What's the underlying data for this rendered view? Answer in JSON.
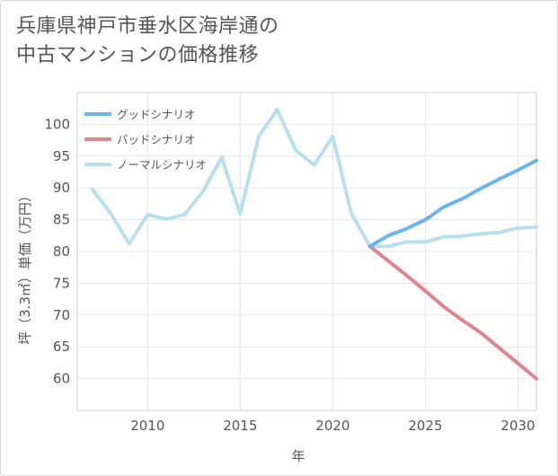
{
  "title_line1": "兵庫県神戸市垂水区海岸通の",
  "title_line2": "中古マンションの価格推移",
  "chart_data": {
    "type": "line",
    "xlabel": "年",
    "ylabel": "坪（3.3㎡）単価（万円）",
    "xlim": [
      2006.2,
      2031
    ],
    "ylim": [
      55,
      105
    ],
    "x_ticks": [
      2010,
      2015,
      2020,
      2025,
      2030
    ],
    "y_ticks": [
      60,
      65,
      70,
      75,
      80,
      85,
      90,
      95,
      100
    ],
    "grid": "both",
    "legend_position": "top-left",
    "series": [
      {
        "name": "グッドシナリオ",
        "color": "#6cb4ea",
        "x": [
          2022,
          2023,
          2024,
          2025,
          2026,
          2027,
          2028,
          2029,
          2030,
          2031
        ],
        "y": [
          80.8,
          82.5,
          83.6,
          85.0,
          87.0,
          88.3,
          89.9,
          91.4,
          92.8,
          94.3
        ]
      },
      {
        "name": "バッドシナリオ",
        "color": "#e0848e",
        "x": [
          2022,
          2023,
          2024,
          2025,
          2026,
          2027,
          2028,
          2029,
          2030,
          2031
        ],
        "y": [
          80.8,
          78.5,
          76.2,
          73.8,
          71.3,
          69.2,
          67.2,
          64.8,
          62.4,
          60.0
        ]
      },
      {
        "name": "ノーマルシナリオ",
        "color": "#b8dff0",
        "x": [
          2007,
          2008,
          2009,
          2010,
          2011,
          2012,
          2013,
          2014,
          2015,
          2016,
          2017,
          2018,
          2019,
          2020,
          2021,
          2022,
          2023,
          2024,
          2025,
          2026,
          2027,
          2028,
          2029,
          2030,
          2031
        ],
        "y": [
          89.8,
          86.0,
          81.2,
          85.8,
          85.1,
          85.8,
          89.5,
          94.8,
          85.9,
          98.1,
          102.3,
          95.9,
          93.6,
          98.1,
          86.0,
          80.8,
          80.8,
          81.5,
          81.5,
          82.3,
          82.4,
          82.8,
          83.0,
          83.7,
          83.8
        ]
      }
    ]
  }
}
